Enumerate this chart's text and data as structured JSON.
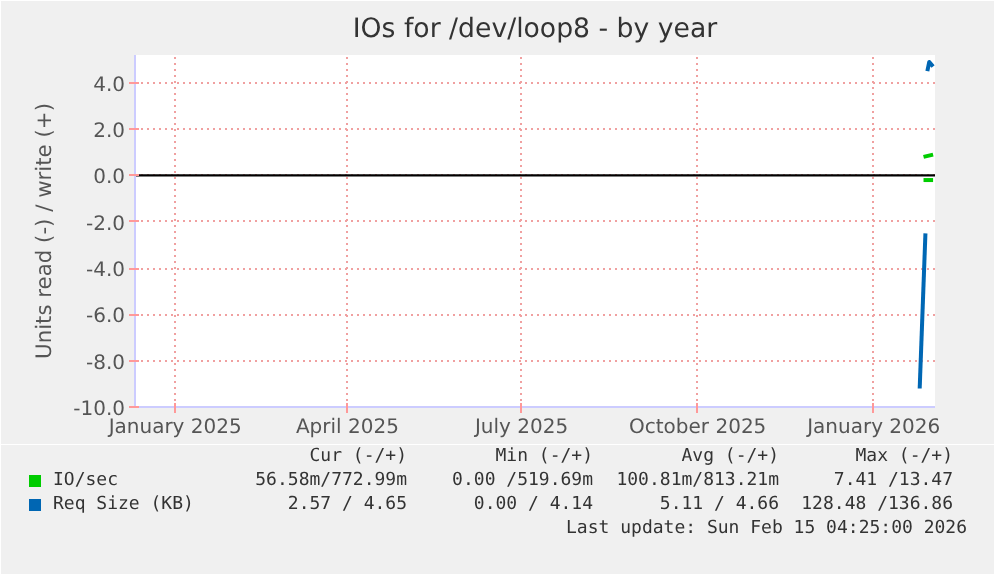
{
  "chart_data": {
    "type": "line",
    "title": "IOs for /dev/loop8 - by year",
    "ylabel": "Units read (-) / write (+)",
    "xlim": [
      "2024-12-11",
      "2026-02-02"
    ],
    "ylim": [
      -10,
      5.2
    ],
    "xticks": [
      {
        "value": "2025-01-01",
        "label": "January 2025"
      },
      {
        "value": "2025-04-01",
        "label": "April 2025"
      },
      {
        "value": "2025-07-01",
        "label": "July 2025"
      },
      {
        "value": "2025-10-01",
        "label": "October 2025"
      },
      {
        "value": "2026-01-01",
        "label": "January 2026"
      }
    ],
    "yticks": [
      {
        "value": -10,
        "label": "-10.0"
      },
      {
        "value": -8,
        "label": "-8.0"
      },
      {
        "value": -6,
        "label": "-6.0"
      },
      {
        "value": -4,
        "label": "-4.0"
      },
      {
        "value": -2,
        "label": "-2.0"
      },
      {
        "value": 0,
        "label": "0.0"
      },
      {
        "value": 2,
        "label": "2.0"
      },
      {
        "value": 4,
        "label": "4.0"
      }
    ],
    "series": [
      {
        "name": "IO/sec",
        "color": "#00cc00",
        "x": [
          "2026-01-27",
          "2026-02-01"
        ],
        "values": [
          0.8,
          0.9
        ]
      },
      {
        "color": "#00cd00",
        "x": [
          "2026-01-27",
          "2026-02-01"
        ],
        "values": [
          -0.2,
          -0.2
        ]
      },
      {
        "name": "Req Size (KB)",
        "color": "#0066b3",
        "x": [
          "2026-01-29",
          "2026-01-30",
          "2026-02-01"
        ],
        "values": [
          4.5,
          4.9,
          4.7
        ]
      },
      {
        "color": "#0067b4",
        "x": [
          "2026-01-25",
          "2026-01-28"
        ],
        "values": [
          -9.2,
          -2.5
        ]
      }
    ],
    "ref_lines": [
      {
        "axis": "y",
        "value": 0,
        "color": "#000000"
      }
    ],
    "grid": true,
    "legend": "bottom",
    "line_style": "solid",
    "marker": "none",
    "annotations": [
      "Cur (-/+)",
      "Min (-/+)",
      "Avg (-/+)",
      "Max (-/+)",
      "56.58m/772.99m",
      "0.00 /519.69m",
      "100.81m/813.21m",
      "7.41 /13.47",
      "2.57 / 4.65",
      "0.00 / 4.14",
      "5.11 / 4.66",
      "128.48 /136.86",
      "Last update: Sun Feb 15 04:25:00 2026"
    ]
  }
}
